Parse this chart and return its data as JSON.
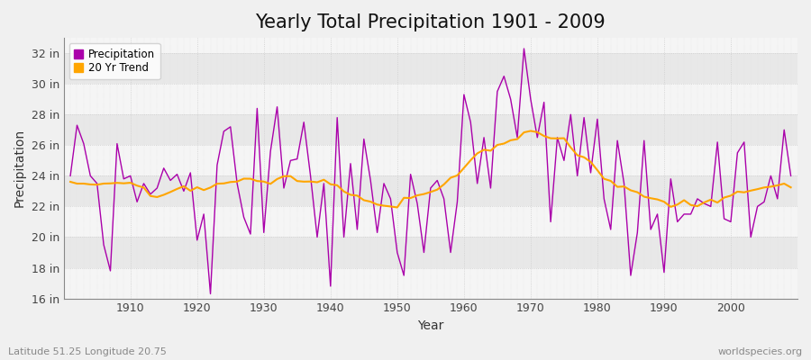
{
  "title": "Yearly Total Precipitation 1901 - 2009",
  "xlabel": "Year",
  "ylabel": "Precipitation",
  "subtitle_left": "Latitude 51.25 Longitude 20.75",
  "subtitle_right": "worldspecies.org",
  "years": [
    1901,
    1902,
    1903,
    1904,
    1905,
    1906,
    1907,
    1908,
    1909,
    1910,
    1911,
    1912,
    1913,
    1914,
    1915,
    1916,
    1917,
    1918,
    1919,
    1920,
    1921,
    1922,
    1923,
    1924,
    1925,
    1926,
    1927,
    1928,
    1929,
    1930,
    1931,
    1932,
    1933,
    1934,
    1935,
    1936,
    1937,
    1938,
    1939,
    1940,
    1941,
    1942,
    1943,
    1944,
    1945,
    1946,
    1947,
    1948,
    1949,
    1950,
    1951,
    1952,
    1953,
    1954,
    1955,
    1956,
    1957,
    1958,
    1959,
    1960,
    1961,
    1962,
    1963,
    1964,
    1965,
    1966,
    1967,
    1968,
    1969,
    1970,
    1971,
    1972,
    1973,
    1974,
    1975,
    1976,
    1977,
    1978,
    1979,
    1980,
    1981,
    1982,
    1983,
    1984,
    1985,
    1986,
    1987,
    1988,
    1989,
    1990,
    1991,
    1992,
    1993,
    1994,
    1995,
    1996,
    1997,
    1998,
    1999,
    2000,
    2001,
    2002,
    2003,
    2004,
    2005,
    2006,
    2007,
    2008,
    2009
  ],
  "precip": [
    24.0,
    27.3,
    26.1,
    24.0,
    23.5,
    19.5,
    17.8,
    26.1,
    23.8,
    24.0,
    22.3,
    23.5,
    22.8,
    23.2,
    24.5,
    23.7,
    24.1,
    23.0,
    24.2,
    19.8,
    21.5,
    16.3,
    24.7,
    26.9,
    27.2,
    23.5,
    21.3,
    20.2,
    28.4,
    20.3,
    25.6,
    28.5,
    23.2,
    25.0,
    25.1,
    27.5,
    24.0,
    20.0,
    23.5,
    16.8,
    27.8,
    20.0,
    24.8,
    20.5,
    26.4,
    23.7,
    20.3,
    23.5,
    22.5,
    19.0,
    17.5,
    24.1,
    22.2,
    19.0,
    23.2,
    23.7,
    22.5,
    19.0,
    22.3,
    29.3,
    27.5,
    23.5,
    26.5,
    23.2,
    29.5,
    30.5,
    29.0,
    26.5,
    32.3,
    29.0,
    26.5,
    28.8,
    21.0,
    26.5,
    25.0,
    28.0,
    24.0,
    27.8,
    24.2,
    27.7,
    22.5,
    20.5,
    26.3,
    23.5,
    17.5,
    20.3,
    26.3,
    20.5,
    21.5,
    17.7,
    23.8,
    21.0,
    21.5,
    21.5,
    22.5,
    22.2,
    22.0,
    26.2,
    21.2,
    21.0,
    25.5,
    26.2,
    20.0,
    22.0,
    22.3,
    24.0,
    22.5,
    27.0,
    24.0
  ],
  "precip_color": "#AA00AA",
  "trend_color": "#FFA500",
  "bg_color": "#F0F0F0",
  "plot_bg_light": "#F5F5F5",
  "plot_bg_dark": "#E8E8E8",
  "grid_color": "#FFFFFF",
  "ylim": [
    16,
    33
  ],
  "yticks": [
    16,
    18,
    20,
    22,
    24,
    26,
    28,
    30,
    32
  ],
  "ytick_labels": [
    "16 in",
    "18 in",
    "20 in",
    "22 in",
    "24 in",
    "26 in",
    "28 in",
    "30 in",
    "32 in"
  ],
  "xticks": [
    1910,
    1920,
    1930,
    1940,
    1950,
    1960,
    1970,
    1980,
    1990,
    2000
  ],
  "title_fontsize": 15,
  "axis_fontsize": 9,
  "label_fontsize": 10
}
